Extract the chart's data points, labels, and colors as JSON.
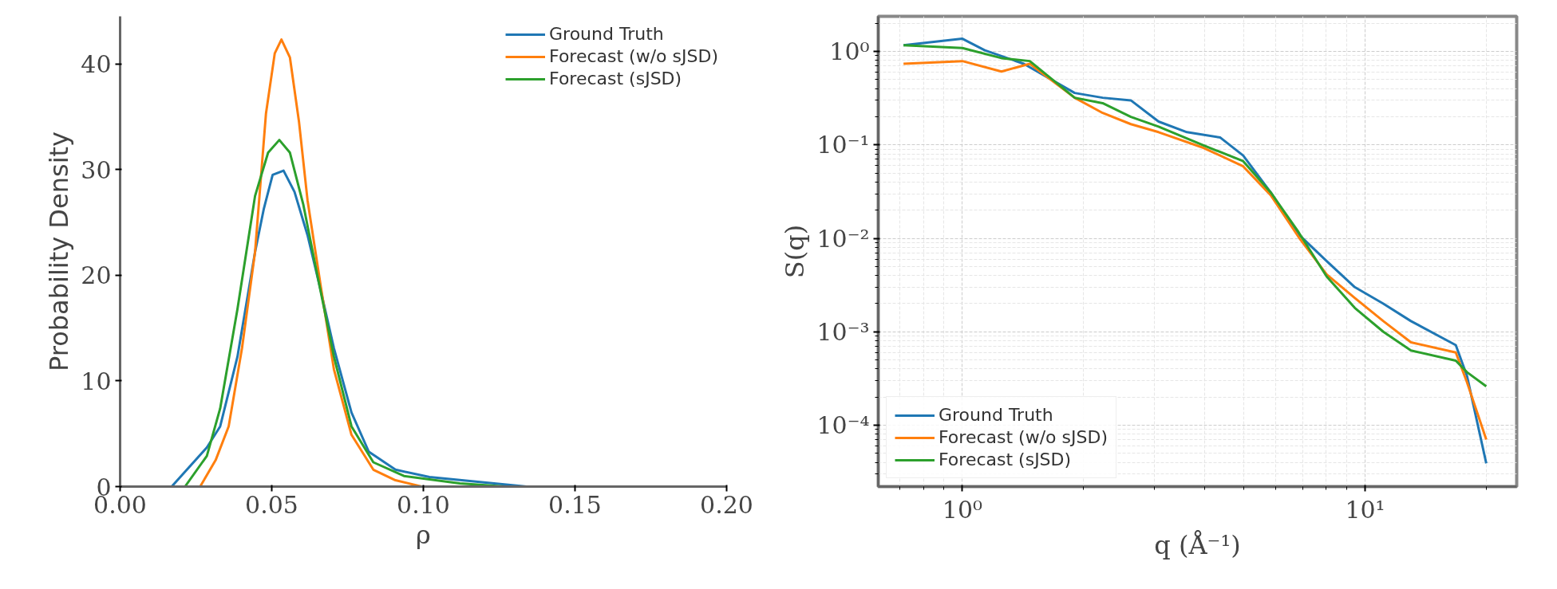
{
  "chart_data": [
    {
      "type": "line",
      "xlabel": "ρ",
      "ylabel": "Probability Density",
      "xlim": [
        0,
        0.2
      ],
      "ylim": [
        0,
        44.5
      ],
      "xticks": [
        {
          "value": 0,
          "label": "0.00"
        },
        {
          "value": 0.05,
          "label": "0.05"
        },
        {
          "value": 0.1,
          "label": "0.10"
        },
        {
          "value": 0.15,
          "label": "0.15"
        },
        {
          "value": 0.2,
          "label": "0.20"
        }
      ],
      "yticks": [
        0,
        10,
        20,
        30,
        40
      ],
      "grid": false,
      "legend": "top right",
      "series": [
        {
          "name": "Ground Truth",
          "color": "#1f77b4",
          "x": [
            0,
            0.017,
            0.0286,
            0.033,
            0.0387,
            0.0445,
            0.0474,
            0.0503,
            0.0539,
            0.0575,
            0.0618,
            0.0662,
            0.0705,
            0.0763,
            0.082,
            0.0908,
            0.102,
            0.12,
            0.134,
            0.2
          ],
          "values": [
            0,
            0,
            3.7,
            5.7,
            12.3,
            22.2,
            26.3,
            29.5,
            29.9,
            27.9,
            23.8,
            18.5,
            13.1,
            7.0,
            3.3,
            1.6,
            0.9,
            0.4,
            0,
            0
          ]
        },
        {
          "name": "Forecast (w/o sJSD)",
          "color": "#ff7f0e",
          "x": [
            0,
            0.0264,
            0.0315,
            0.0358,
            0.0402,
            0.0445,
            0.0481,
            0.051,
            0.0532,
            0.056,
            0.059,
            0.0618,
            0.0662,
            0.0705,
            0.0763,
            0.0835,
            0.0908,
            0.0994,
            0.2
          ],
          "values": [
            0,
            0,
            2.5,
            5.7,
            13.1,
            22.2,
            35.3,
            41.0,
            42.3,
            40.6,
            34.5,
            27.1,
            18.9,
            11.1,
            4.9,
            1.6,
            0.6,
            0,
            0
          ]
        },
        {
          "name": "Forecast (sJSD)",
          "color": "#2ca02c",
          "x": [
            0,
            0.0214,
            0.0286,
            0.033,
            0.0387,
            0.0445,
            0.0488,
            0.0525,
            0.056,
            0.0604,
            0.0647,
            0.0705,
            0.0763,
            0.0835,
            0.0936,
            0.112,
            0.127,
            0.2
          ],
          "values": [
            0,
            0,
            2.9,
            7.4,
            16.8,
            27.5,
            31.6,
            32.8,
            31.6,
            26.7,
            20.5,
            12.3,
            5.7,
            2.3,
            1.0,
            0.3,
            0,
            0
          ]
        }
      ]
    },
    {
      "type": "line",
      "xlabel": "q (Å⁻¹)",
      "ylabel": "S(q)",
      "log": "xy",
      "xlim": [
        0.618,
        23.8
      ],
      "ylim": [
        2.2e-05,
        2.38
      ],
      "xticks": [
        {
          "value": 1,
          "label": "10⁰"
        },
        {
          "value": 10,
          "label": "10¹"
        }
      ],
      "yticks": [
        {
          "value": 0.0001,
          "label": "10⁻⁴"
        },
        {
          "value": 0.001,
          "label": "10⁻³"
        },
        {
          "value": 0.01,
          "label": "10⁻²"
        },
        {
          "value": 0.1,
          "label": "10⁻¹"
        },
        {
          "value": 1,
          "label": "10⁰"
        }
      ],
      "grid": true,
      "legend": "bottom left",
      "series": [
        {
          "name": "Ground Truth",
          "color": "#1f77b4",
          "x": [
            0.714,
            1.0,
            1.137,
            1.42,
            1.9,
            2.23,
            2.62,
            3.07,
            3.61,
            4.37,
            4.98,
            5.83,
            6.84,
            8.03,
            9.43,
            11.1,
            13.0,
            16.8,
            17.9,
            20.0
          ],
          "values": [
            1.17,
            1.37,
            1.03,
            0.74,
            0.36,
            0.32,
            0.3,
            0.178,
            0.137,
            0.12,
            0.077,
            0.031,
            0.011,
            0.0057,
            0.003,
            0.002,
            0.0013,
            0.00072,
            0.00034,
            3.9e-05
          ]
        },
        {
          "name": "Forecast (w/o sJSD)",
          "color": "#ff7f0e",
          "x": [
            0.714,
            1.0,
            1.25,
            1.47,
            1.9,
            2.23,
            2.62,
            3.07,
            3.97,
            4.98,
            5.83,
            6.84,
            8.03,
            9.43,
            11.1,
            13.0,
            16.8,
            17.9,
            20.0
          ],
          "values": [
            0.74,
            0.79,
            0.61,
            0.74,
            0.32,
            0.22,
            0.167,
            0.137,
            0.093,
            0.059,
            0.029,
            0.0103,
            0.0041,
            0.0023,
            0.0013,
            0.00077,
            0.0006,
            0.00029,
            7e-05
          ]
        },
        {
          "name": "Forecast (sJSD)",
          "color": "#2ca02c",
          "x": [
            0.714,
            1.0,
            1.25,
            1.47,
            1.9,
            2.23,
            2.62,
            3.07,
            3.97,
            4.98,
            5.83,
            6.84,
            8.03,
            9.43,
            11.1,
            13.0,
            16.8,
            17.9,
            20.0
          ],
          "values": [
            1.17,
            1.09,
            0.85,
            0.79,
            0.32,
            0.28,
            0.2,
            0.157,
            0.099,
            0.067,
            0.031,
            0.0116,
            0.0039,
            0.0018,
            0.001,
            0.00063,
            0.00049,
            0.00037,
            0.00026
          ]
        }
      ]
    }
  ]
}
